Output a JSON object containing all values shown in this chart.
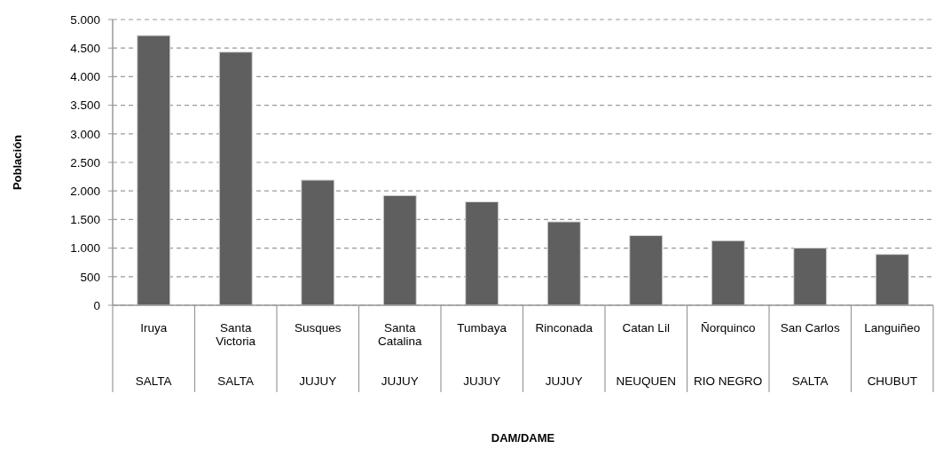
{
  "chart_data": {
    "type": "bar",
    "ylabel": "Población",
    "categories": [
      "Iruya",
      "Santa Victoria",
      "Susques",
      "Santa Catalina",
      "Tumbaya",
      "Rinconada",
      "Catan Lil",
      "Ñorquinco",
      "San Carlos",
      "Languiñeo"
    ],
    "values": [
      4720,
      4430,
      2190,
      1920,
      1810,
      1460,
      1220,
      1130,
      1000,
      890
    ],
    "color": "#5f5f5f",
    "ylim": [
      0,
      5000
    ],
    "yticks": [
      0,
      500,
      {
        "value": 1000,
        "label": "1.000"
      },
      {
        "value": 1500,
        "label": "1.500"
      },
      {
        "value": 2000,
        "label": "2.000"
      },
      {
        "value": 2500,
        "label": "2.500"
      },
      {
        "value": 3000,
        "label": "3.000"
      },
      {
        "value": 3500,
        "label": "3.500"
      },
      {
        "value": 4000,
        "label": "4.000"
      },
      {
        "value": 4500,
        "label": "4.500"
      },
      {
        "value": 5000,
        "label": "5.000"
      }
    ],
    "grid": "y",
    "annotations": [
      "SALTA",
      "SALTA",
      "JUJUY",
      "JUJUY",
      "JUJUY",
      "JUJUY",
      "NEUQUEN",
      "RIO NEGRO",
      "SALTA",
      "CHUBUT",
      "DAM/DAME"
    ]
  }
}
